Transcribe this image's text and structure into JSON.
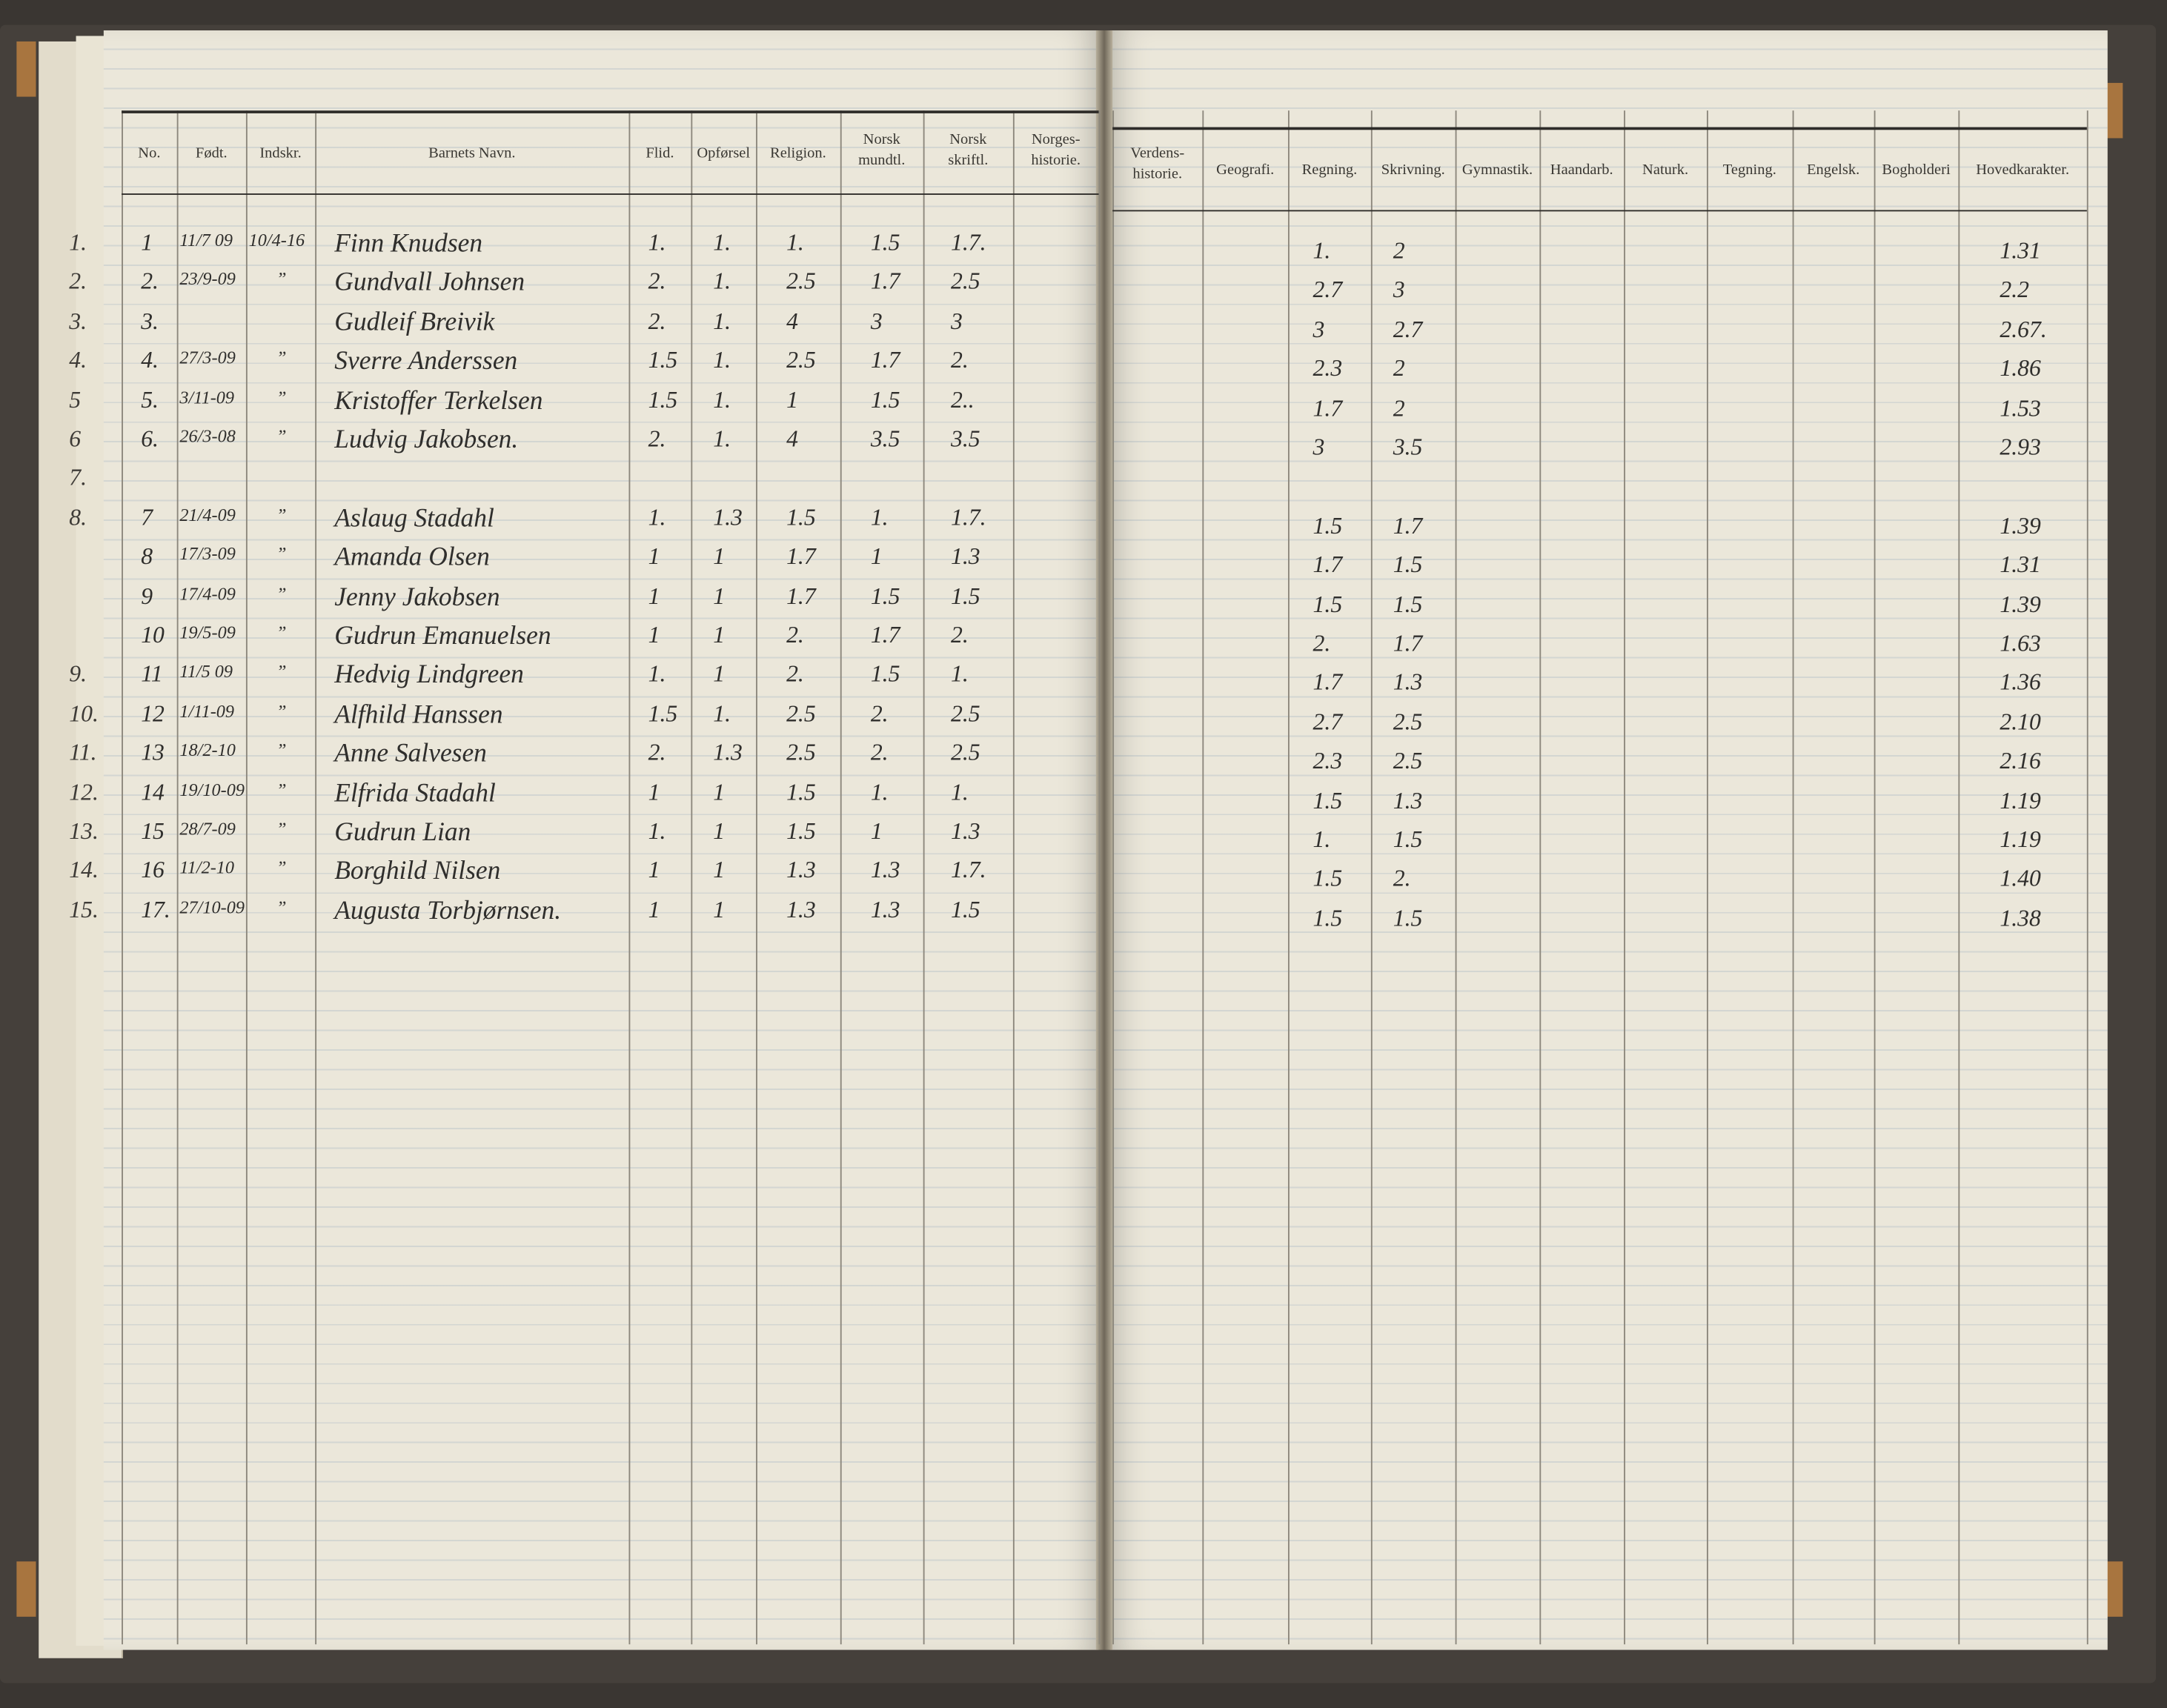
{
  "left_page": {
    "headers": [
      "No.",
      "Født.",
      "Indskr.",
      "Barnets Navn.",
      "Flid.",
      "Opførsel",
      "Religion.",
      "Norsk\nmundtl.",
      "Norsk\nskriftl.",
      "Norges-\nhistorie."
    ],
    "underlying_page_header": "No"
  },
  "right_page": {
    "headers": [
      "Verdens-\nhistorie.",
      "Geografi.",
      "Regning.",
      "Skrivning.",
      "Gymnastik.",
      "Haandarb.",
      "Naturk.",
      "Tegning.",
      "Engelsk.",
      "Bogholderi",
      "Hovedkarakter."
    ]
  },
  "rows": [
    {
      "margin": "1.",
      "no": "1",
      "born": "11/7 09",
      "enrolled": "10/4-16",
      "name": "Finn Knudsen",
      "flid": "1.",
      "opforsel": "1.",
      "religion": "1.",
      "norsk_m": "1.5",
      "norsk_s": "1.7.",
      "regning": "1.",
      "skrivning": "2",
      "hoved": "1.31"
    },
    {
      "margin": "2.",
      "no": "2.",
      "born": "23/9-09",
      "enrolled": "”",
      "name": "Gundvall Johnsen",
      "flid": "2.",
      "opforsel": "1.",
      "religion": "2.5",
      "norsk_m": "1.7",
      "norsk_s": "2.5",
      "regning": "2.7",
      "skrivning": "3",
      "hoved": "2.2"
    },
    {
      "margin": "3.",
      "no": "3.",
      "born": "",
      "enrolled": "",
      "name": "Gudleif Breivik",
      "flid": "2.",
      "opforsel": "1.",
      "religion": "4",
      "norsk_m": "3",
      "norsk_s": "3",
      "regning": "3",
      "skrivning": "2.7",
      "hoved": "2.67."
    },
    {
      "margin": "4.",
      "no": "4.",
      "born": "27/3-09",
      "enrolled": "”",
      "name": "Sverre Anderssen",
      "flid": "1.5",
      "opforsel": "1.",
      "religion": "2.5",
      "norsk_m": "1.7",
      "norsk_s": "2.",
      "regning": "2.3",
      "skrivning": "2",
      "hoved": "1.86"
    },
    {
      "margin": "5",
      "no": "5.",
      "born": "3/11-09",
      "enrolled": "”",
      "name": "Kristoffer Terkelsen",
      "flid": "1.5",
      "opforsel": "1.",
      "religion": "1",
      "norsk_m": "1.5",
      "norsk_s": "2..",
      "regning": "1.7",
      "skrivning": "2",
      "hoved": "1.53"
    },
    {
      "margin": "6",
      "no": "6.",
      "born": "26/3-08",
      "enrolled": "”",
      "name": "Ludvig Jakobsen.",
      "flid": "2.",
      "opforsel": "1.",
      "religion": "4",
      "norsk_m": "3.5",
      "norsk_s": "3.5",
      "regning": "3",
      "skrivning": "3.5",
      "hoved": "2.93"
    },
    {
      "margin": "7.",
      "no": "",
      "born": "",
      "enrolled": "",
      "name": "",
      "flid": "",
      "opforsel": "",
      "religion": "",
      "norsk_m": "",
      "norsk_s": "",
      "regning": "",
      "skrivning": "",
      "hoved": ""
    },
    {
      "margin": "8.",
      "no": "7",
      "born": "21/4-09",
      "enrolled": "”",
      "name": "Aslaug Stadahl",
      "flid": "1.",
      "opforsel": "1.3",
      "religion": "1.5",
      "norsk_m": "1.",
      "norsk_s": "1.7.",
      "regning": "1.5",
      "skrivning": "1.7",
      "hoved": "1.39"
    },
    {
      "margin": "",
      "no": "8",
      "born": "17/3-09",
      "enrolled": "”",
      "name": "Amanda Olsen",
      "flid": "1",
      "opforsel": "1",
      "religion": "1.7",
      "norsk_m": "1",
      "norsk_s": "1.3",
      "regning": "1.7",
      "skrivning": "1.5",
      "hoved": "1.31"
    },
    {
      "margin": "",
      "no": "9",
      "born": "17/4-09",
      "enrolled": "”",
      "name": "Jenny Jakobsen",
      "flid": "1",
      "opforsel": "1",
      "religion": "1.7",
      "norsk_m": "1.5",
      "norsk_s": "1.5",
      "regning": "1.5",
      "skrivning": "1.5",
      "hoved": "1.39"
    },
    {
      "margin": "",
      "no": "10",
      "born": "19/5-09",
      "enrolled": "”",
      "name": "Gudrun Emanuelsen",
      "flid": "1",
      "opforsel": "1",
      "religion": "2.",
      "norsk_m": "1.7",
      "norsk_s": "2.",
      "regning": "2.",
      "skrivning": "1.7",
      "hoved": "1.63"
    },
    {
      "margin": "9.",
      "no": "11",
      "born": "11/5 09",
      "enrolled": "”",
      "name": "Hedvig Lindgreen",
      "flid": "1.",
      "opforsel": "1",
      "religion": "2.",
      "norsk_m": "1.5",
      "norsk_s": "1.",
      "regning": "1.7",
      "skrivning": "1.3",
      "hoved": "1.36"
    },
    {
      "margin": "10.",
      "no": "12",
      "born": "1/11-09",
      "enrolled": "”",
      "name": "Alfhild Hanssen",
      "flid": "1.5",
      "opforsel": "1.",
      "religion": "2.5",
      "norsk_m": "2.",
      "norsk_s": "2.5",
      "regning": "2.7",
      "skrivning": "2.5",
      "hoved": "2.10"
    },
    {
      "margin": "11.",
      "no": "13",
      "born": "18/2-10",
      "enrolled": "”",
      "name": "Anne Salvesen",
      "flid": "2.",
      "opforsel": "1.3",
      "religion": "2.5",
      "norsk_m": "2.",
      "norsk_s": "2.5",
      "regning": "2.3",
      "skrivning": "2.5",
      "hoved": "2.16"
    },
    {
      "margin": "12.",
      "no": "14",
      "born": "19/10-09",
      "enrolled": "”",
      "name": "Elfrida Stadahl",
      "flid": "1",
      "opforsel": "1",
      "religion": "1.5",
      "norsk_m": "1.",
      "norsk_s": "1.",
      "regning": "1.5",
      "skrivning": "1.3",
      "hoved": "1.19"
    },
    {
      "margin": "13.",
      "no": "15",
      "born": "28/7-09",
      "enrolled": "”",
      "name": "Gudrun Lian",
      "flid": "1.",
      "opforsel": "1",
      "religion": "1.5",
      "norsk_m": "1",
      "norsk_s": "1.3",
      "regning": "1.",
      "skrivning": "1.5",
      "hoved": "1.19"
    },
    {
      "margin": "14.",
      "no": "16",
      "born": "11/2-10",
      "enrolled": "”",
      "name": "Borghild Nilsen",
      "flid": "1",
      "opforsel": "1",
      "religion": "1.3",
      "norsk_m": "1.3",
      "norsk_s": "1.7.",
      "regning": "1.5",
      "skrivning": "2.",
      "hoved": "1.40"
    },
    {
      "margin": "15.",
      "no": "17.",
      "born": "27/10-09",
      "enrolled": "”",
      "name": "Augusta Torbjørnsen.",
      "flid": "1",
      "opforsel": "1",
      "religion": "1.3",
      "norsk_m": "1.3",
      "norsk_s": "1.5",
      "regning": "1.5",
      "skrivning": "1.5",
      "hoved": "1.38"
    }
  ],
  "colors": {
    "paper": "#ebe7da",
    "ink": "#2f2e2c",
    "cover": "#45403b",
    "rule": "#aabed0"
  }
}
